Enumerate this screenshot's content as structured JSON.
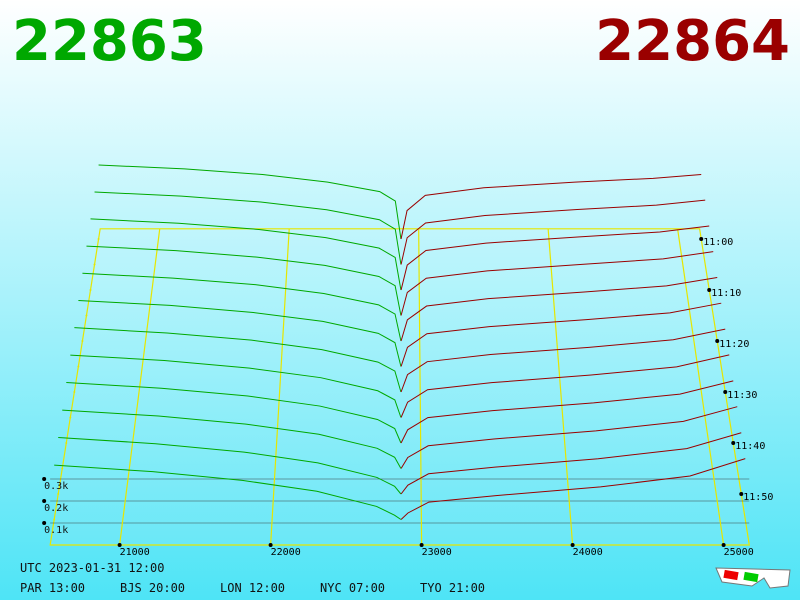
{
  "chart_data": {
    "type": "depth3d",
    "bid_price": "22863",
    "ask_price": "22864",
    "bid_color": "#00a800",
    "ask_color": "#9a0000",
    "floor_color": "#e6e600",
    "xlim": [
      20540,
      25170
    ],
    "xticks": [
      21000,
      22000,
      23000,
      24000,
      25000
    ],
    "zlim": [
      -2,
      60
    ],
    "zticks": [
      {
        "value": 0,
        "label": "11:00"
      },
      {
        "value": 10,
        "label": "11:10"
      },
      {
        "value": 20,
        "label": "11:20"
      },
      {
        "value": 30,
        "label": "11:30"
      },
      {
        "value": 40,
        "label": "11:40"
      },
      {
        "value": 50,
        "label": "11:50"
      }
    ],
    "yticks": [
      {
        "value": 100,
        "label": "0.1k"
      },
      {
        "value": 200,
        "label": "0.2k"
      },
      {
        "value": 300,
        "label": "0.3k"
      }
    ],
    "snapshot_z": [
      0,
      5,
      10,
      15,
      20,
      25,
      30,
      35,
      40,
      45,
      50,
      55
    ],
    "bid_prices": [
      22863,
      22820,
      22700,
      22300,
      21800,
      21200,
      20540
    ],
    "ask_prices": [
      22864,
      22910,
      23050,
      23500,
      24200,
      24800,
      25170
    ],
    "bid_depths": [
      [
        0,
        200,
        250,
        300,
        340,
        370,
        390
      ],
      [
        0,
        184,
        233,
        285,
        325,
        356,
        377
      ],
      [
        0,
        167,
        215,
        269,
        311,
        343,
        365
      ],
      [
        0,
        151,
        198,
        254,
        296,
        329,
        352
      ],
      [
        0,
        135,
        181,
        238,
        282,
        315,
        339
      ],
      [
        0,
        118,
        164,
        223,
        267,
        302,
        326
      ],
      [
        0,
        102,
        146,
        207,
        253,
        288,
        314
      ],
      [
        0,
        85,
        129,
        192,
        238,
        275,
        301
      ],
      [
        0,
        69,
        112,
        176,
        224,
        261,
        288
      ],
      [
        0,
        53,
        95,
        161,
        209,
        247,
        275
      ],
      [
        0,
        36,
        77,
        145,
        195,
        234,
        263
      ],
      [
        0,
        20,
        60,
        130,
        180,
        220,
        250
      ]
    ],
    "ask_depths": [
      [
        0,
        150,
        230,
        270,
        300,
        320,
        340
      ],
      [
        0,
        139,
        216,
        255,
        286,
        309,
        335
      ],
      [
        0,
        128,
        203,
        241,
        273,
        298,
        329
      ],
      [
        0,
        117,
        189,
        226,
        259,
        287,
        324
      ],
      [
        0,
        106,
        175,
        212,
        245,
        276,
        318
      ],
      [
        0,
        95,
        162,
        197,
        232,
        265,
        313
      ],
      [
        0,
        85,
        148,
        183,
        218,
        255,
        307
      ],
      [
        0,
        74,
        134,
        168,
        205,
        244,
        302
      ],
      [
        0,
        63,
        121,
        154,
        191,
        233,
        296
      ],
      [
        0,
        52,
        107,
        139,
        177,
        222,
        291
      ],
      [
        0,
        41,
        94,
        125,
        164,
        211,
        285
      ],
      [
        0,
        30,
        80,
        110,
        150,
        200,
        280
      ]
    ],
    "footer": {
      "utc": "UTC 2023-01-31 12:00",
      "zones": [
        "PAR 13:00",
        "BJS 20:00",
        "LON 12:00",
        "NYC 07:00",
        "TYO 21:00"
      ]
    }
  }
}
